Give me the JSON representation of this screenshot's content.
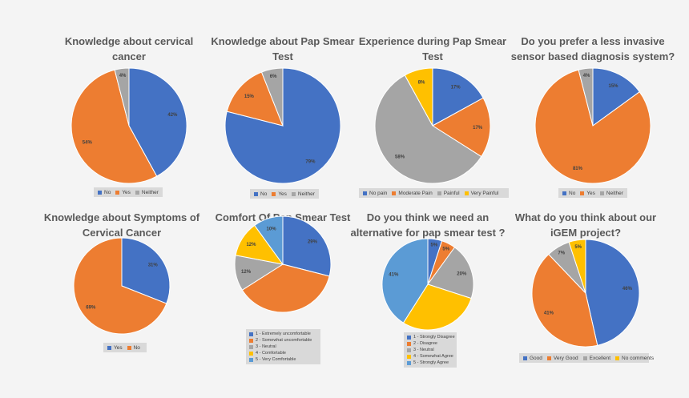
{
  "colors": {
    "blue": "#4472c4",
    "orange": "#ed7d31",
    "gray": "#a5a5a5",
    "yellow": "#ffc000",
    "lightblue": "#5b9bd5"
  },
  "chart_data": [
    {
      "type": "pie",
      "title_lines": [
        "Knowledge about cervical",
        "cancer"
      ],
      "categories": [
        "No",
        "Yes",
        "Neither"
      ],
      "values": [
        42,
        54,
        4
      ],
      "labels": [
        "42%",
        "54%",
        "4%"
      ],
      "colors": [
        "#4472c4",
        "#ed7d31",
        "#a5a5a5"
      ],
      "legend_placement": "bottom"
    },
    {
      "type": "pie",
      "title_lines": [
        "Knowledge about Pap Smear",
        "Test"
      ],
      "categories": [
        "No",
        "Yes",
        "Neither"
      ],
      "values": [
        79,
        15,
        6
      ],
      "labels": [
        "79%",
        "15%",
        "6%"
      ],
      "colors": [
        "#4472c4",
        "#ed7d31",
        "#a5a5a5"
      ],
      "legend_placement": "bottom"
    },
    {
      "type": "pie",
      "title_lines": [
        "Experience during Pap Smear",
        "Test"
      ],
      "categories": [
        "No pain",
        "Moderate Pain",
        "Painful",
        "Very Painful"
      ],
      "values": [
        17,
        17,
        58,
        8
      ],
      "labels": [
        "17%",
        "17%",
        "58%",
        "8%"
      ],
      "colors": [
        "#4472c4",
        "#ed7d31",
        "#a5a5a5",
        "#ffc000"
      ],
      "legend_placement": "bottom"
    },
    {
      "type": "pie",
      "title_lines": [
        "Do you prefer a less invasive",
        "sensor based diagnosis system?"
      ],
      "categories": [
        "No",
        "Yes",
        "Neither"
      ],
      "values": [
        15,
        81,
        4
      ],
      "labels": [
        "15%",
        "81%",
        "4%"
      ],
      "colors": [
        "#4472c4",
        "#ed7d31",
        "#a5a5a5"
      ],
      "legend_placement": "bottom"
    },
    {
      "type": "pie",
      "title_lines": [
        "Knowledge about Symptoms of",
        "Cervical Cancer"
      ],
      "categories": [
        "Yes",
        "No"
      ],
      "values": [
        31,
        69
      ],
      "labels": [
        "31%",
        "69%"
      ],
      "colors": [
        "#4472c4",
        "#ed7d31"
      ],
      "legend_placement": "bottom"
    },
    {
      "type": "pie",
      "title_lines": [
        "Comfort Of Pap Smear Test"
      ],
      "categories": [
        "1 - Extremely uncomfortable",
        "2 - Somewhat uncomfortable",
        "3 - Neutral",
        "4 - Comfortable",
        "5 - Very Comfortable"
      ],
      "values": [
        29,
        37,
        12,
        12,
        10
      ],
      "labels": [
        "29%",
        "",
        "12%",
        "12%",
        "10%"
      ],
      "colors": [
        "#4472c4",
        "#ed7d31",
        "#a5a5a5",
        "#ffc000",
        "#5b9bd5"
      ],
      "legend_placement": "bottom"
    },
    {
      "type": "pie",
      "title_lines": [
        "Do you think we need an",
        "alternative for pap smear test ?"
      ],
      "categories": [
        "1 - Strongly Disagree",
        "2 - Disagree",
        "3 - Neutral",
        "4 - Somewhat Agree",
        "5 - Strongly Agree"
      ],
      "values": [
        5,
        5,
        20,
        29,
        41
      ],
      "labels": [
        "5%",
        "5%",
        "20%",
        "",
        "41%"
      ],
      "colors": [
        "#4472c4",
        "#ed7d31",
        "#a5a5a5",
        "#ffc000",
        "#5b9bd5"
      ],
      "legend_placement": "bottom"
    },
    {
      "type": "pie",
      "title_lines": [
        "What do you think about our",
        "iGEM project?"
      ],
      "categories": [
        "Good",
        "Very Good",
        "Excellent",
        "No comments"
      ],
      "values": [
        46,
        41,
        7,
        5
      ],
      "labels": [
        "46%",
        "41%",
        "7%",
        "5%"
      ],
      "colors": [
        "#4472c4",
        "#ed7d31",
        "#a5a5a5",
        "#ffc000"
      ],
      "legend_placement": "bottom"
    }
  ]
}
